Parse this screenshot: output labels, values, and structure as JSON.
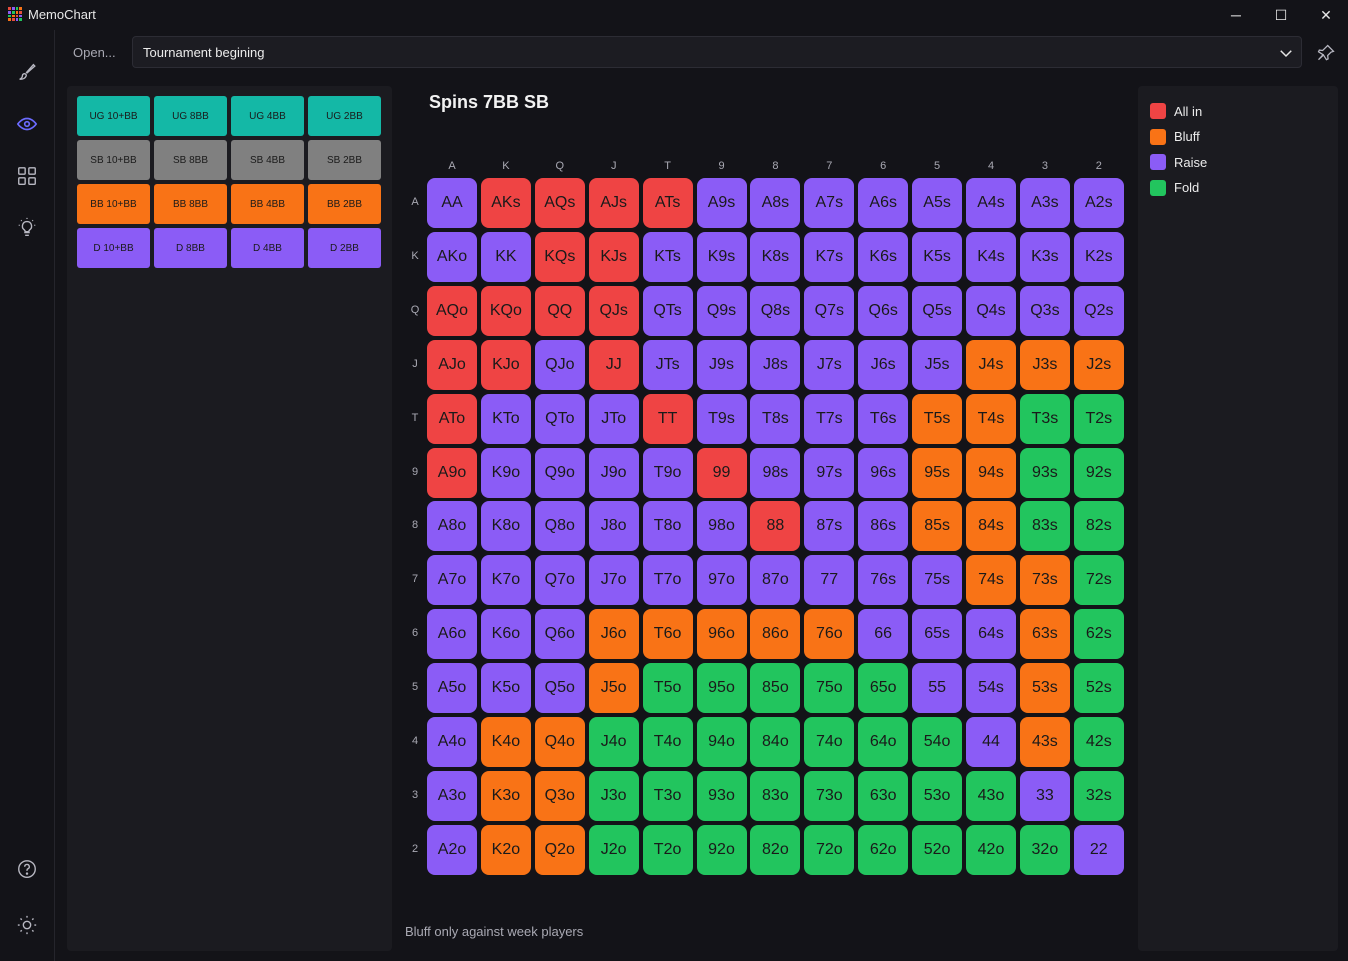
{
  "window": {
    "title": "MemoChart",
    "controls": {
      "minimize": "─",
      "maximize": "☐",
      "close": "✕"
    },
    "logo_colors": [
      "#e74c3c",
      "#8b5cf6",
      "#22c55e",
      "#f97316"
    ]
  },
  "rail": {
    "items": [
      {
        "name": "brush-icon",
        "active": false
      },
      {
        "name": "eye-icon",
        "active": true
      },
      {
        "name": "grid-icon",
        "active": false
      },
      {
        "name": "lightbulb-icon",
        "active": false
      }
    ],
    "bottom_items": [
      {
        "name": "help-icon"
      },
      {
        "name": "theme-icon"
      }
    ]
  },
  "topbar": {
    "open_label": "Open...",
    "selected_chart": "Tournament begining"
  },
  "presets": [
    {
      "label": "UG 10+BB",
      "color": "#14b8a6"
    },
    {
      "label": "UG 8BB",
      "color": "#14b8a6"
    },
    {
      "label": "UG 4BB",
      "color": "#14b8a6"
    },
    {
      "label": "UG 2BB",
      "color": "#14b8a6"
    },
    {
      "label": "SB 10+BB",
      "color": "#808080"
    },
    {
      "label": "SB 8BB",
      "color": "#808080"
    },
    {
      "label": "SB 4BB",
      "color": "#808080"
    },
    {
      "label": "SB 2BB",
      "color": "#808080"
    },
    {
      "label": "BB 10+BB",
      "color": "#f97316"
    },
    {
      "label": "BB 8BB",
      "color": "#f97316"
    },
    {
      "label": "BB 4BB",
      "color": "#f97316"
    },
    {
      "label": "BB 2BB",
      "color": "#f97316"
    },
    {
      "label": "D 10+BB",
      "color": "#8b5cf6"
    },
    {
      "label": "D 8BB",
      "color": "#8b5cf6"
    },
    {
      "label": "D 4BB",
      "color": "#8b5cf6"
    },
    {
      "label": "D 2BB",
      "color": "#8b5cf6"
    }
  ],
  "chart": {
    "title": "Spins 7BB SB",
    "ranks": [
      "A",
      "K",
      "Q",
      "J",
      "T",
      "9",
      "8",
      "7",
      "6",
      "5",
      "4",
      "3",
      "2"
    ],
    "action_codes": {
      "A": "#ef4444",
      "B": "#f97316",
      "R": "#8b5cf6",
      "F": "#22c55e"
    },
    "rows": [
      [
        "AA",
        "AKs",
        "AQs",
        "AJs",
        "ATs",
        "A9s",
        "A8s",
        "A7s",
        "A6s",
        "A5s",
        "A4s",
        "A3s",
        "A2s"
      ],
      [
        "AKo",
        "KK",
        "KQs",
        "KJs",
        "KTs",
        "K9s",
        "K8s",
        "K7s",
        "K6s",
        "K5s",
        "K4s",
        "K3s",
        "K2s"
      ],
      [
        "AQo",
        "KQo",
        "QQ",
        "QJs",
        "QTs",
        "Q9s",
        "Q8s",
        "Q7s",
        "Q6s",
        "Q5s",
        "Q4s",
        "Q3s",
        "Q2s"
      ],
      [
        "AJo",
        "KJo",
        "QJo",
        "JJ",
        "JTs",
        "J9s",
        "J8s",
        "J7s",
        "J6s",
        "J5s",
        "J4s",
        "J3s",
        "J2s"
      ],
      [
        "ATo",
        "KTo",
        "QTo",
        "JTo",
        "TT",
        "T9s",
        "T8s",
        "T7s",
        "T6s",
        "T5s",
        "T4s",
        "T3s",
        "T2s"
      ],
      [
        "A9o",
        "K9o",
        "Q9o",
        "J9o",
        "T9o",
        "99",
        "98s",
        "97s",
        "96s",
        "95s",
        "94s",
        "93s",
        "92s"
      ],
      [
        "A8o",
        "K8o",
        "Q8o",
        "J8o",
        "T8o",
        "98o",
        "88",
        "87s",
        "86s",
        "85s",
        "84s",
        "83s",
        "82s"
      ],
      [
        "A7o",
        "K7o",
        "Q7o",
        "J7o",
        "T7o",
        "97o",
        "87o",
        "77",
        "76s",
        "75s",
        "74s",
        "73s",
        "72s"
      ],
      [
        "A6o",
        "K6o",
        "Q6o",
        "J6o",
        "T6o",
        "96o",
        "86o",
        "76o",
        "66",
        "65s",
        "64s",
        "63s",
        "62s"
      ],
      [
        "A5o",
        "K5o",
        "Q5o",
        "J5o",
        "T5o",
        "95o",
        "85o",
        "75o",
        "65o",
        "55",
        "54s",
        "53s",
        "52s"
      ],
      [
        "A4o",
        "K4o",
        "Q4o",
        "J4o",
        "T4o",
        "94o",
        "84o",
        "74o",
        "64o",
        "54o",
        "44",
        "43s",
        "42s"
      ],
      [
        "A3o",
        "K3o",
        "Q3o",
        "J3o",
        "T3o",
        "93o",
        "83o",
        "73o",
        "63o",
        "53o",
        "43o",
        "33",
        "32s"
      ],
      [
        "A2o",
        "K2o",
        "Q2o",
        "J2o",
        "T2o",
        "92o",
        "82o",
        "72o",
        "62o",
        "52o",
        "42o",
        "32o",
        "22"
      ]
    ],
    "actions": [
      "RAAAARRRRRRRR",
      "RRAARRRRRRRRR",
      "AAAARRRRRRRRR",
      "AARARRRRRRBBB",
      "ARRRARRRRBBFF",
      "ARRRRARRRBBFF",
      "RRRRRRARRBBFF",
      "RRRRRRRRRRBBF",
      "RRRBBBBBRRRBF",
      "RRRBFFFFFRRBF",
      "RBBFFFFFFFRBF",
      "RBBFFFFFFFFRF",
      "RBBFFFFFFFFFR"
    ],
    "note": "Bluff only against week players"
  },
  "legend": [
    {
      "label": "All in",
      "color": "#ef4444"
    },
    {
      "label": "Bluff",
      "color": "#f97316"
    },
    {
      "label": "Raise",
      "color": "#8b5cf6"
    },
    {
      "label": "Fold",
      "color": "#22c55e"
    }
  ]
}
